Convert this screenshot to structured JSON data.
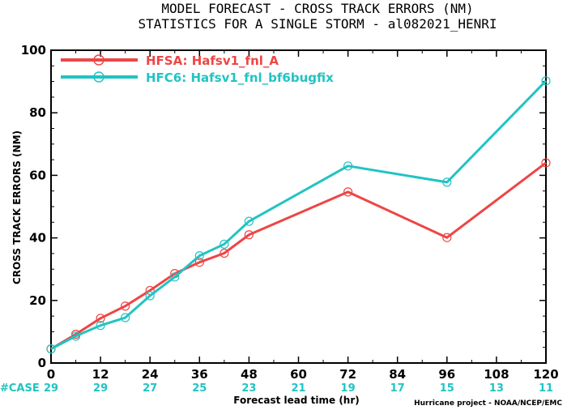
{
  "chart_data": {
    "type": "line",
    "title": [
      "MODEL FORECAST - CROSS TRACK ERRORS (NM)",
      "STATISTICS FOR A SINGLE STORM - al082021_HENRI"
    ],
    "xlabel": "Forecast lead time (hr)",
    "ylabel": "CROSS TRACK ERRORS (NM)",
    "xlim": [
      0,
      120
    ],
    "ylim": [
      0,
      100
    ],
    "x_ticks": [
      "0",
      "12",
      "24",
      "36",
      "48",
      "60",
      "72",
      "84",
      "96",
      "108",
      "120"
    ],
    "y_ticks": [
      "0",
      "20",
      "40",
      "60",
      "80",
      "100"
    ],
    "x": [
      0,
      6,
      12,
      18,
      24,
      30,
      36,
      42,
      48,
      72,
      96,
      120
    ],
    "series": [
      {
        "name": "HFSA: Hafsv1_fnl_A",
        "color": "#ef4545",
        "values": [
          4.5,
          9.2,
          14.3,
          18.2,
          23.2,
          28.6,
          32.2,
          35.1,
          41.0,
          54.7,
          40.1,
          64.0
        ]
      },
      {
        "name": "HFC6: Hafsv1_fnl_bf6bugfix",
        "color": "#22c3c3",
        "values": [
          4.5,
          8.6,
          12.0,
          14.5,
          21.5,
          27.5,
          34.3,
          38.0,
          45.3,
          63.0,
          57.8,
          90.2
        ]
      }
    ],
    "case_label": "#CASE",
    "case_counts": [
      {
        "x": 0,
        "label": "29"
      },
      {
        "x": 12,
        "label": "29"
      },
      {
        "x": 24,
        "label": "27"
      },
      {
        "x": 36,
        "label": "25"
      },
      {
        "x": 48,
        "label": "23"
      },
      {
        "x": 60,
        "label": "21"
      },
      {
        "x": 72,
        "label": "19"
      },
      {
        "x": 84,
        "label": "17"
      },
      {
        "x": 96,
        "label": "15"
      },
      {
        "x": 108,
        "label": "13"
      },
      {
        "x": 120,
        "label": "11"
      }
    ],
    "grid": false,
    "legend_position": "top-left",
    "credit": "Hurricane project - NOAA/NCEP/EMC"
  }
}
